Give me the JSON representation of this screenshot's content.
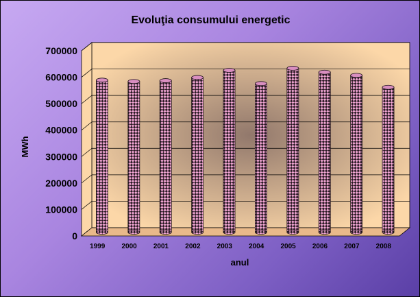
{
  "chart_data": {
    "type": "bar",
    "title": "Evoluţia consumului energetic",
    "xlabel": "anul",
    "ylabel": "MWh",
    "categories": [
      "1999",
      "2000",
      "2001",
      "2002",
      "2003",
      "2004",
      "2005",
      "2006",
      "2007",
      "2008"
    ],
    "values": [
      575000,
      570000,
      573000,
      585000,
      612000,
      562000,
      620000,
      605000,
      593000,
      548000
    ],
    "ylim": [
      0,
      700000
    ],
    "yticks": [
      "0",
      "100000",
      "200000",
      "300000",
      "400000",
      "500000",
      "600000",
      "700000"
    ],
    "grid": true,
    "legend": "none",
    "colors": {
      "bar_light": "#f2a6d4",
      "bar_dark": "#2a1a24",
      "wall": "#fcd7a8",
      "floor": "#e9b98a",
      "gridline": "#000000"
    }
  }
}
